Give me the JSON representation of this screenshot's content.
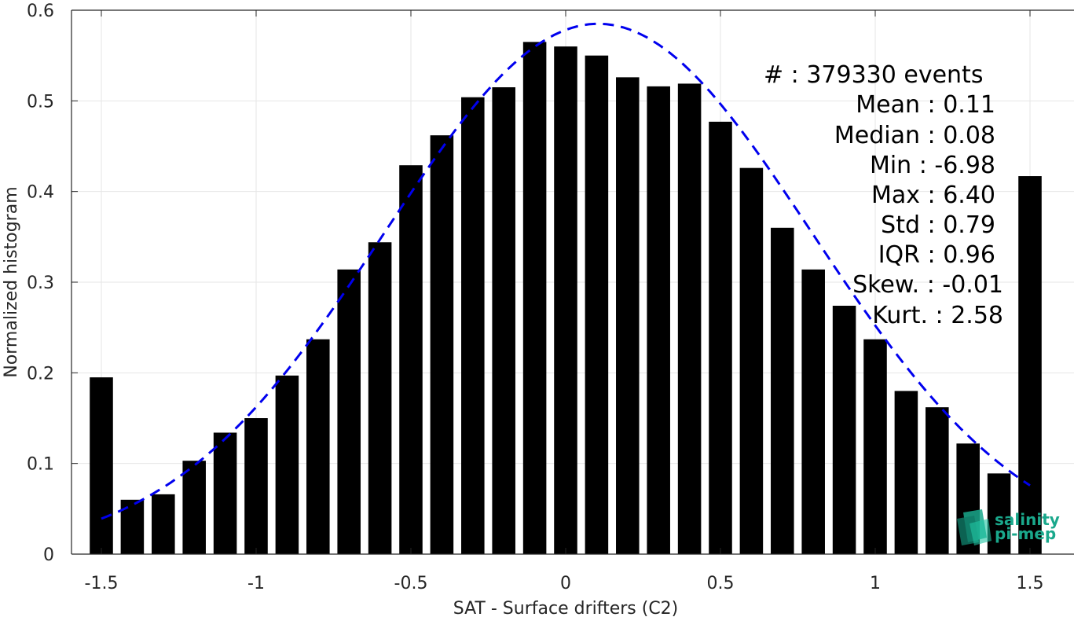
{
  "chart_data": {
    "type": "bar",
    "xlabel": "SAT - Surface drifters (C2)",
    "ylabel": "Normalized histogram",
    "xlim": [
      -1.55,
      1.55
    ],
    "ylim": [
      0,
      0.6
    ],
    "xticks": [
      -1.5,
      -1,
      -0.5,
      0,
      0.5,
      1,
      1.5
    ],
    "xtick_labels": [
      "-1.5",
      "-1",
      "-0.5",
      "0",
      "0.5",
      "1",
      "1.5"
    ],
    "yticks": [
      0,
      0.1,
      0.2,
      0.3,
      0.4,
      0.5,
      0.6
    ],
    "ytick_labels": [
      "0",
      "0.1",
      "0.2",
      "0.3",
      "0.4",
      "0.5",
      "0.6"
    ],
    "grid": true,
    "bar_color": "#000000",
    "bar_width": 0.075,
    "x": [
      -1.5,
      -1.4,
      -1.3,
      -1.2,
      -1.1,
      -1.0,
      -0.9,
      -0.8,
      -0.7,
      -0.6,
      -0.5,
      -0.4,
      -0.3,
      -0.2,
      -0.1,
      0.0,
      0.1,
      0.2,
      0.3,
      0.4,
      0.5,
      0.6,
      0.7,
      0.8,
      0.9,
      1.0,
      1.1,
      1.2,
      1.3,
      1.4,
      1.5
    ],
    "values": [
      0.195,
      0.06,
      0.066,
      0.103,
      0.134,
      0.15,
      0.197,
      0.237,
      0.314,
      0.344,
      0.429,
      0.462,
      0.504,
      0.515,
      0.565,
      0.56,
      0.55,
      0.526,
      0.516,
      0.519,
      0.477,
      0.426,
      0.36,
      0.314,
      0.274,
      0.237,
      0.18,
      0.162,
      0.122,
      0.089,
      0.417
    ],
    "fit_curve": {
      "type": "gaussian",
      "color": "#0000ee",
      "style": "dashed",
      "mean": 0.105,
      "sigma": 0.69,
      "peak": 0.585,
      "x_range": [
        -1.5,
        1.5
      ]
    }
  },
  "stats": {
    "count": "#  : 379330 events",
    "mean": "Mean : 0.11",
    "median": "Median : 0.08",
    "min": "Min : -6.98",
    "max": "Max : 6.40",
    "std": "Std : 0.79",
    "iqr": "IQR : 0.96",
    "skew": "Skew. : -0.01",
    "kurt": "Kurt. : 2.58"
  },
  "logo": {
    "line1": "salinity",
    "line2": "pi-mep",
    "color": "#1aa88c"
  }
}
